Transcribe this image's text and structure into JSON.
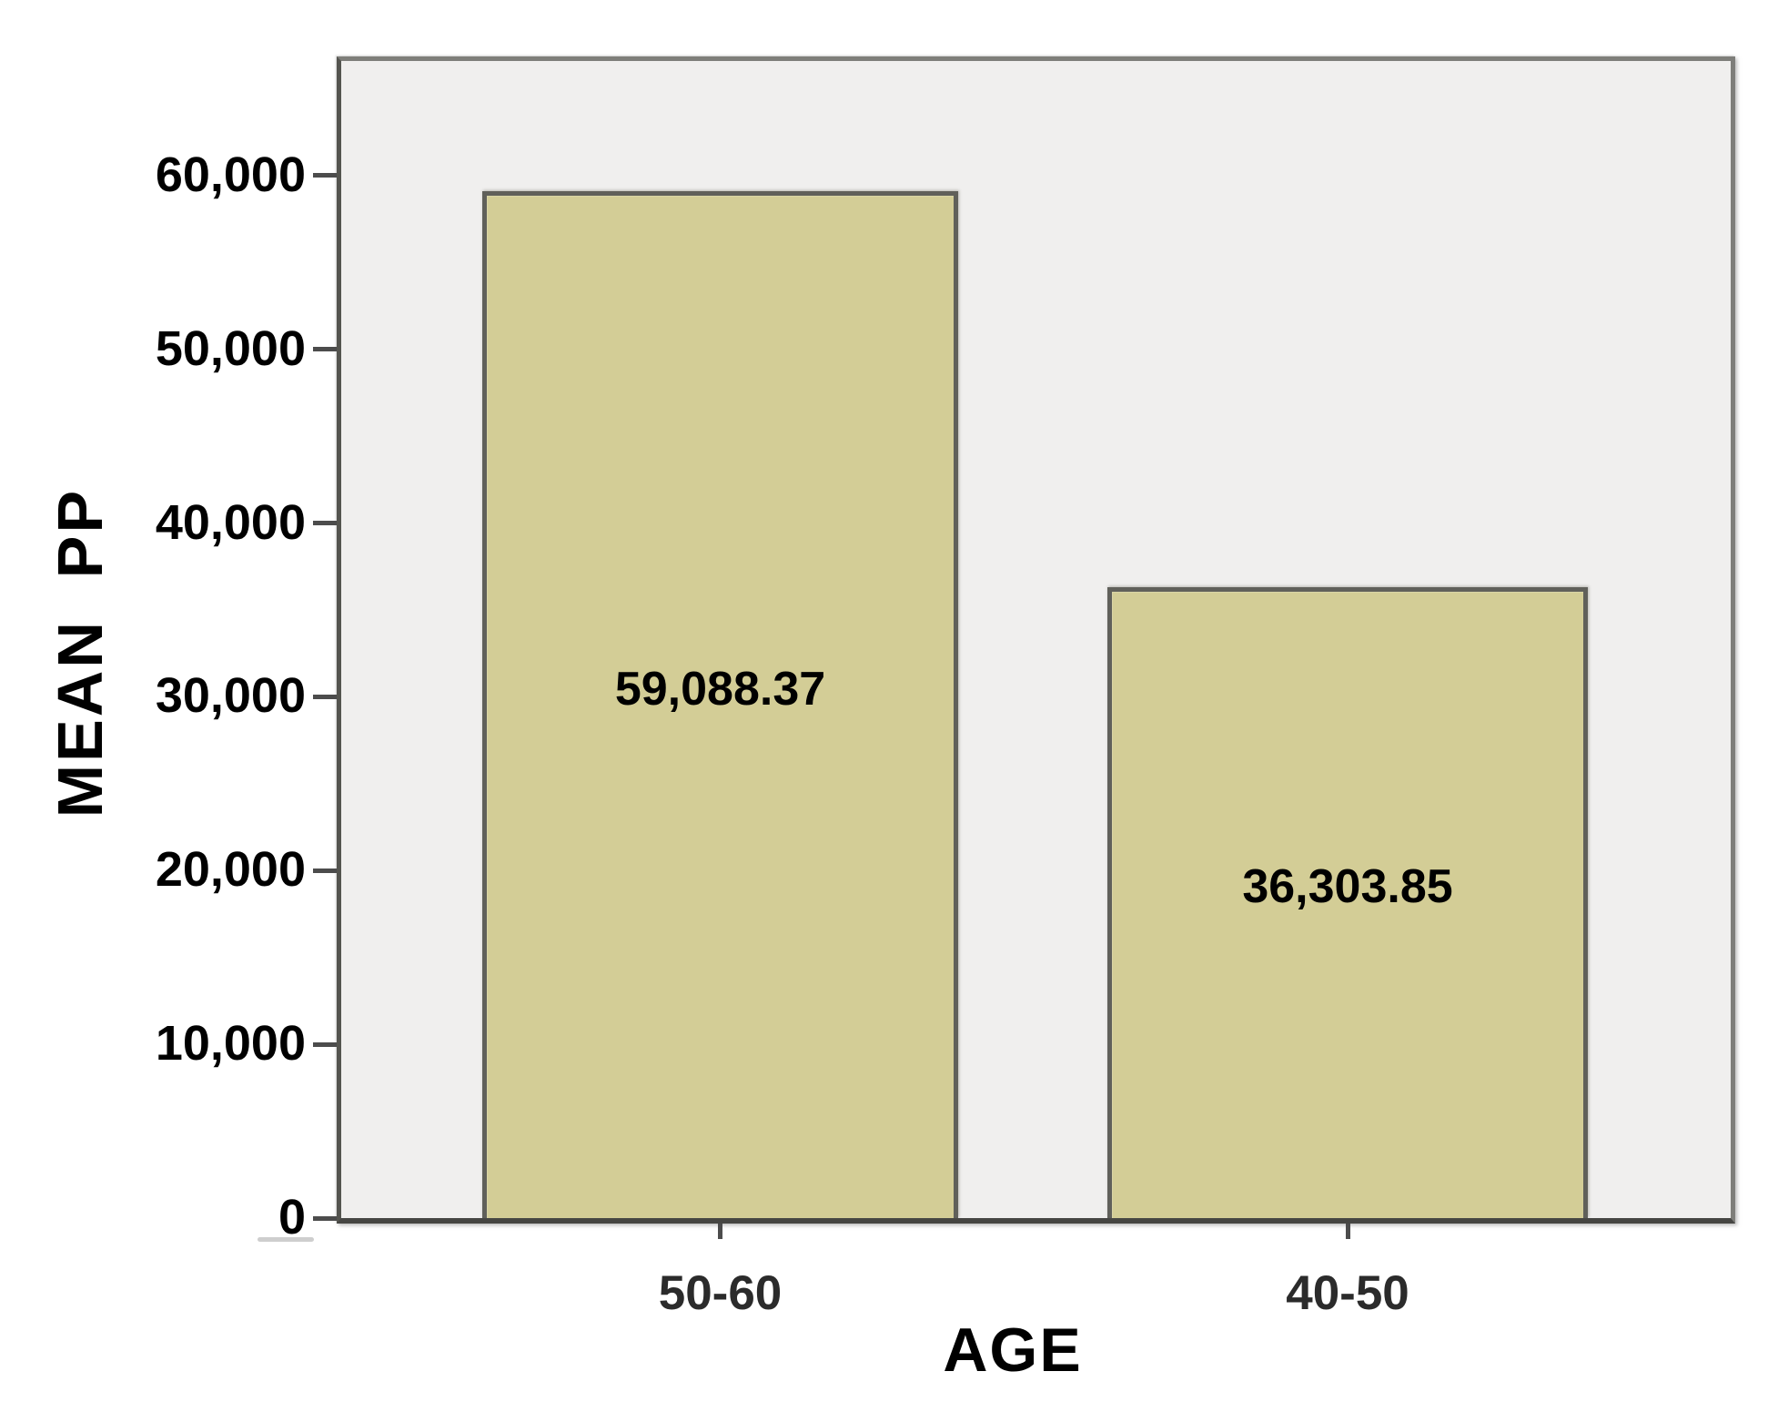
{
  "chart_data": {
    "type": "bar",
    "title": "",
    "categories": [
      "50-60",
      "40-50"
    ],
    "values": [
      59088.37,
      36303.85
    ],
    "value_labels": [
      "59,088.37",
      "36,303.85"
    ],
    "xlabel": "AGE",
    "ylabel": "MEAN  PP",
    "ylim": [
      0,
      66600
    ],
    "yticks": [
      0,
      10000,
      20000,
      30000,
      40000,
      50000,
      60000
    ],
    "ytick_labels": [
      "0",
      "10,000",
      "20,000",
      "30,000",
      "40,000",
      "50,000",
      "60,000"
    ],
    "grid": false,
    "legend": null,
    "colors": {
      "bar_fill": "#d3cd96",
      "bar_border": "#60605a",
      "plot_bg": "#f0efee",
      "plot_border": "#7e7e7a",
      "text": "#000000"
    }
  }
}
